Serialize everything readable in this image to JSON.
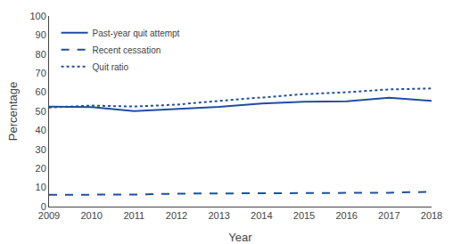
{
  "chart_data": {
    "type": "line",
    "x": [
      2009,
      2010,
      2011,
      2012,
      2013,
      2014,
      2015,
      2016,
      2017,
      2018
    ],
    "xlabel": "Year",
    "ylabel": "Percentage",
    "series": [
      {
        "name": "Past-year quit attempt",
        "color": "#1f4e9e",
        "line_style": "solid",
        "values": [
          52.4,
          52.2,
          50.1,
          51.2,
          52.3,
          54.1,
          55.0,
          55.2,
          57.1,
          55.5
        ]
      },
      {
        "name": "Recent cessation",
        "color": "#1f4e9e",
        "line_style": "dashed",
        "values": [
          6.2,
          6.1,
          6.3,
          6.8,
          6.9,
          7.0,
          7.1,
          7.2,
          7.3,
          7.8
        ]
      },
      {
        "name": "Quit ratio",
        "color": "#1f4e9e",
        "line_style": "dotted",
        "values": [
          52.0,
          53.0,
          52.5,
          53.5,
          55.5,
          57.2,
          59.0,
          60.0,
          61.5,
          62.0
        ]
      }
    ],
    "xlim": [
      2009,
      2018
    ],
    "xticks": [
      2009,
      2010,
      2011,
      2012,
      2013,
      2014,
      2015,
      2016,
      2017,
      2018
    ],
    "ylim": [
      0,
      100
    ],
    "yticks": [
      0,
      10,
      20,
      30,
      40,
      50,
      60,
      70,
      80,
      90,
      100
    ],
    "grid": false,
    "legend": "upper left"
  }
}
